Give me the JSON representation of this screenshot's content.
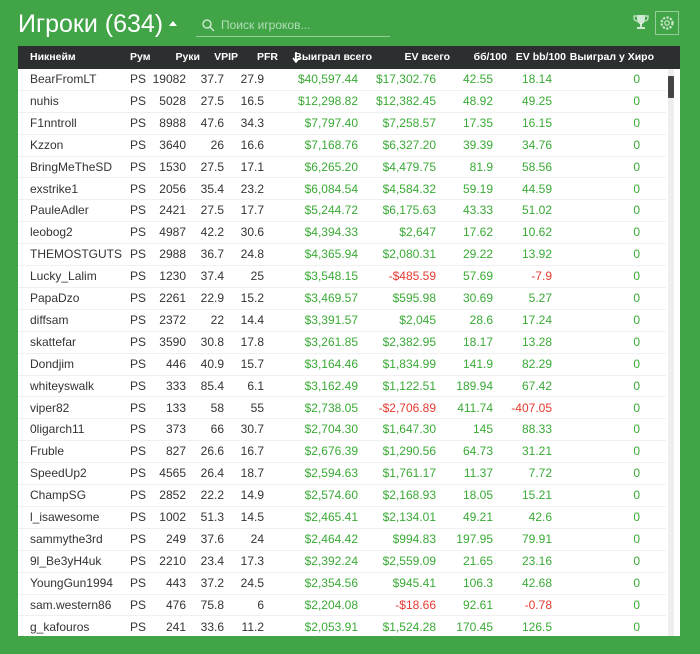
{
  "header": {
    "title": "Игроки (634)",
    "search_placeholder": "Поиск игроков..."
  },
  "table": {
    "columns": [
      "Никнейм",
      "Рум",
      "Руки",
      "VPIP",
      "PFR",
      "Выиграл всего",
      "EV всего",
      "бб/100",
      "EV bb/100",
      "Выиграл у Хиро"
    ],
    "rows": [
      [
        "BearFromLT",
        "PS",
        "19082",
        "37.7",
        "27.9",
        "$40,597.44",
        "$17,302.76",
        "42.55",
        "18.14",
        "0"
      ],
      [
        "nuhis",
        "PS",
        "5028",
        "27.5",
        "16.5",
        "$12,298.82",
        "$12,382.45",
        "48.92",
        "49.25",
        "0"
      ],
      [
        "F1nntroll",
        "PS",
        "8988",
        "47.6",
        "34.3",
        "$7,797.40",
        "$7,258.57",
        "17.35",
        "16.15",
        "0"
      ],
      [
        "Kzzon",
        "PS",
        "3640",
        "26",
        "16.6",
        "$7,168.76",
        "$6,327.20",
        "39.39",
        "34.76",
        "0"
      ],
      [
        "BringMeTheSD",
        "PS",
        "1530",
        "27.5",
        "17.1",
        "$6,265.20",
        "$4,479.75",
        "81.9",
        "58.56",
        "0"
      ],
      [
        "exstrike1",
        "PS",
        "2056",
        "35.4",
        "23.2",
        "$6,084.54",
        "$4,584.32",
        "59.19",
        "44.59",
        "0"
      ],
      [
        "PauleAdler",
        "PS",
        "2421",
        "27.5",
        "17.7",
        "$5,244.72",
        "$6,175.63",
        "43.33",
        "51.02",
        "0"
      ],
      [
        "leobog2",
        "PS",
        "4987",
        "42.2",
        "30.6",
        "$4,394.33",
        "$2,647",
        "17.62",
        "10.62",
        "0"
      ],
      [
        "THEMOSTGUTS",
        "PS",
        "2988",
        "36.7",
        "24.8",
        "$4,365.94",
        "$2,080.31",
        "29.22",
        "13.92",
        "0"
      ],
      [
        "Lucky_Lalim",
        "PS",
        "1230",
        "37.4",
        "25",
        "$3,548.15",
        "-$485.59",
        "57.69",
        "-7.9",
        "0"
      ],
      [
        "PapaDzo",
        "PS",
        "2261",
        "22.9",
        "15.2",
        "$3,469.57",
        "$595.98",
        "30.69",
        "5.27",
        "0"
      ],
      [
        "diffsam",
        "PS",
        "2372",
        "22",
        "14.4",
        "$3,391.57",
        "$2,045",
        "28.6",
        "17.24",
        "0"
      ],
      [
        "skattefar",
        "PS",
        "3590",
        "30.8",
        "17.8",
        "$3,261.85",
        "$2,382.95",
        "18.17",
        "13.28",
        "0"
      ],
      [
        "Dondjim",
        "PS",
        "446",
        "40.9",
        "15.7",
        "$3,164.46",
        "$1,834.99",
        "141.9",
        "82.29",
        "0"
      ],
      [
        "whiteyswalk",
        "PS",
        "333",
        "85.4",
        "6.1",
        "$3,162.49",
        "$1,122.51",
        "189.94",
        "67.42",
        "0"
      ],
      [
        "viper82",
        "PS",
        "133",
        "58",
        "55",
        "$2,738.05",
        "-$2,706.89",
        "411.74",
        "-407.05",
        "0"
      ],
      [
        "0ligarch11",
        "PS",
        "373",
        "66",
        "30.7",
        "$2,704.30",
        "$1,647.30",
        "145",
        "88.33",
        "0"
      ],
      [
        "Fruble",
        "PS",
        "827",
        "26.6",
        "16.7",
        "$2,676.39",
        "$1,290.56",
        "64.73",
        "31.21",
        "0"
      ],
      [
        "SpeedUp2",
        "PS",
        "4565",
        "26.4",
        "18.7",
        "$2,594.63",
        "$1,761.17",
        "11.37",
        "7.72",
        "0"
      ],
      [
        "ChampSG",
        "PS",
        "2852",
        "22.2",
        "14.9",
        "$2,574.60",
        "$2,168.93",
        "18.05",
        "15.21",
        "0"
      ],
      [
        "l_isawesome",
        "PS",
        "1002",
        "51.3",
        "14.5",
        "$2,465.41",
        "$2,134.01",
        "49.21",
        "42.6",
        "0"
      ],
      [
        "sammythe3rd",
        "PS",
        "249",
        "37.6",
        "24",
        "$2,464.42",
        "$994.83",
        "197.95",
        "79.91",
        "0"
      ],
      [
        "9l_Be3yH4uk",
        "PS",
        "2210",
        "23.4",
        "17.3",
        "$2,392.24",
        "$2,559.09",
        "21.65",
        "23.16",
        "0"
      ],
      [
        "YoungGun1994",
        "PS",
        "443",
        "37.2",
        "24.5",
        "$2,354.56",
        "$945.41",
        "106.3",
        "42.68",
        "0"
      ],
      [
        "sam.western86",
        "PS",
        "476",
        "75.8",
        "6",
        "$2,204.08",
        "-$18.66",
        "92.61",
        "-0.78",
        "0"
      ],
      [
        "g_kafouros",
        "PS",
        "241",
        "33.6",
        "11.2",
        "$2,053.91",
        "$1,524.28",
        "170.45",
        "126.5",
        "0"
      ]
    ]
  }
}
